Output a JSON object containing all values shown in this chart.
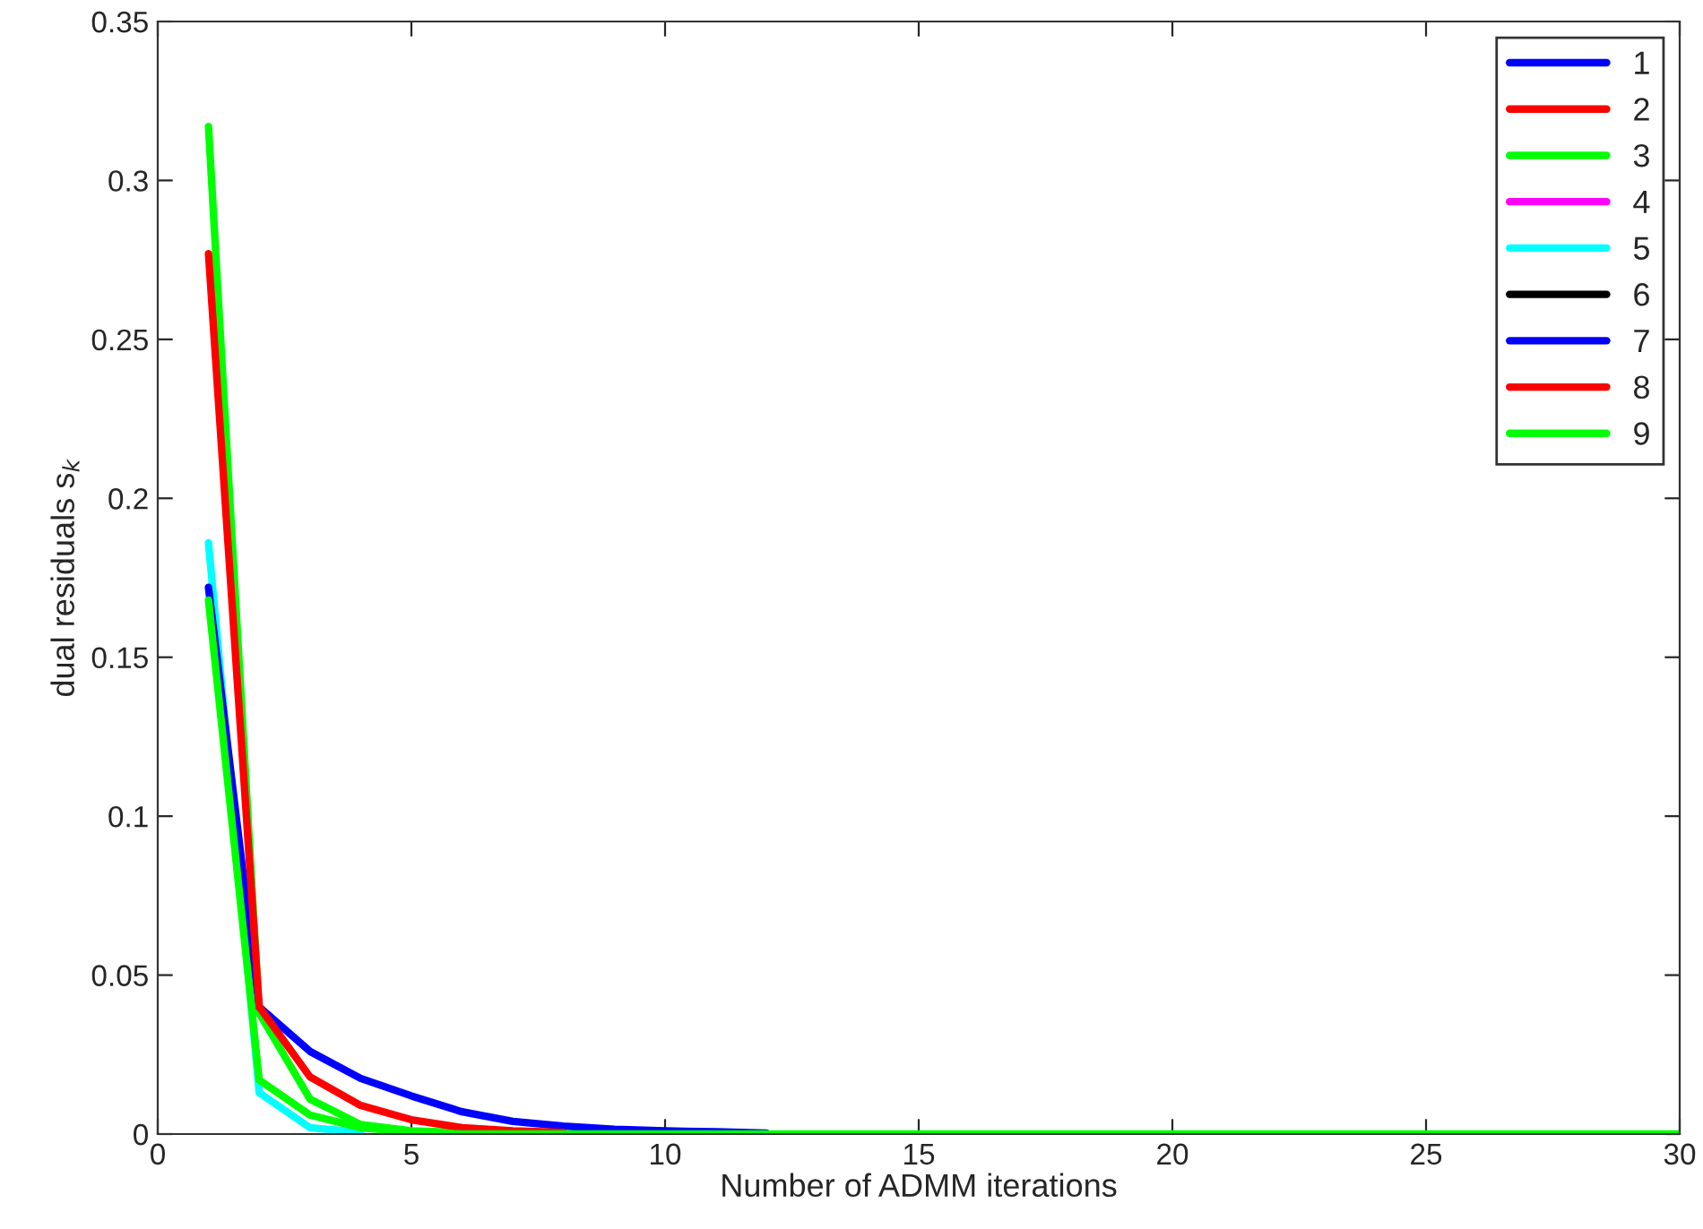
{
  "chart_data": {
    "type": "line",
    "xlabel": "Number of ADMM iterations",
    "ylabel": "dual residuals s$_{k}$",
    "x": [
      1,
      2,
      3,
      4,
      5,
      6,
      7,
      8,
      9,
      10,
      11,
      12,
      13,
      14,
      15,
      16,
      17,
      18,
      19,
      20,
      21,
      22,
      23,
      24,
      25,
      26,
      27,
      28,
      29,
      30
    ],
    "series": [
      {
        "name": "1",
        "color": "#0000ff",
        "values": [
          null,
          null,
          null,
          null,
          null,
          null,
          null,
          null,
          null,
          null,
          null,
          null,
          null,
          null,
          null,
          null,
          null,
          null,
          null,
          null,
          null,
          null,
          null,
          null,
          null,
          null,
          null,
          null,
          null,
          null
        ]
      },
      {
        "name": "2",
        "color": "#ff0000",
        "values": [
          null,
          null,
          null,
          null,
          null,
          null,
          null,
          null,
          null,
          null,
          null,
          null,
          null,
          null,
          null,
          null,
          null,
          null,
          null,
          null,
          null,
          null,
          null,
          null,
          null,
          null,
          null,
          null,
          null,
          null
        ]
      },
      {
        "name": "3",
        "color": "#00ff00",
        "values": [
          0.317,
          0.038,
          0.011,
          0.003,
          0.001,
          0.0005,
          null,
          null,
          null,
          null,
          null,
          null,
          null,
          null,
          null,
          null,
          null,
          null,
          null,
          null,
          null,
          null,
          null,
          null,
          null,
          null,
          null,
          null,
          null,
          null
        ]
      },
      {
        "name": "4",
        "color": "#ff00ff",
        "values": [
          null,
          null,
          null,
          null,
          null,
          null,
          null,
          null,
          null,
          null,
          null,
          null,
          null,
          null,
          null,
          null,
          null,
          null,
          null,
          null,
          null,
          null,
          null,
          null,
          null,
          null,
          null,
          null,
          null,
          null
        ]
      },
      {
        "name": "5",
        "color": "#00ffff",
        "values": [
          0.186,
          0.013,
          0.002,
          0.0005,
          null,
          null,
          null,
          null,
          null,
          null,
          null,
          null,
          null,
          null,
          null,
          null,
          null,
          null,
          null,
          null,
          null,
          null,
          null,
          null,
          null,
          null,
          null,
          null,
          null,
          null
        ]
      },
      {
        "name": "6",
        "color": "#000000",
        "values": [
          null,
          null,
          null,
          null,
          null,
          null,
          null,
          null,
          null,
          null,
          null,
          null,
          null,
          null,
          null,
          null,
          null,
          null,
          null,
          null,
          null,
          null,
          null,
          null,
          null,
          null,
          null,
          null,
          null,
          null
        ]
      },
      {
        "name": "7",
        "color": "#0000ff",
        "values": [
          0.172,
          0.04,
          0.026,
          0.0175,
          0.012,
          0.007,
          0.004,
          0.0025,
          0.0015,
          0.001,
          0.0007,
          0.0003,
          null,
          null,
          null,
          null,
          null,
          null,
          null,
          null,
          null,
          null,
          null,
          null,
          null,
          null,
          null,
          null,
          null,
          null
        ]
      },
      {
        "name": "8",
        "color": "#ff0000",
        "values": [
          0.277,
          0.04,
          0.018,
          0.009,
          0.0045,
          0.002,
          0.001,
          0.0005,
          null,
          null,
          null,
          null,
          null,
          null,
          null,
          null,
          null,
          null,
          null,
          null,
          null,
          null,
          null,
          null,
          null,
          null,
          null,
          null,
          null,
          null
        ]
      },
      {
        "name": "9",
        "color": "#00ff00",
        "values": [
          0.168,
          0.017,
          0.006,
          0.002,
          0.0005,
          0,
          0,
          0,
          0,
          0,
          0,
          0,
          0,
          0,
          0,
          0,
          0,
          0,
          0,
          0,
          0,
          0,
          0,
          0,
          0,
          0,
          0,
          0,
          0,
          0
        ]
      }
    ],
    "xlim": [
      0,
      30
    ],
    "xticks": [
      0,
      5,
      10,
      15,
      20,
      25,
      30
    ],
    "ylim": [
      0,
      0.35
    ],
    "yticks": [
      0,
      0.05,
      0.1,
      0.15,
      0.2,
      0.25,
      0.3,
      0.35
    ],
    "legend": "top right",
    "grid": false,
    "line_style": "solid"
  }
}
